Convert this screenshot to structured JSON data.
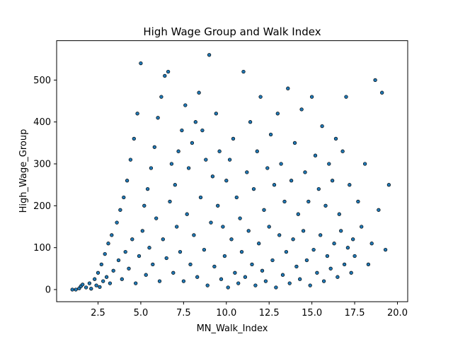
{
  "chart_data": {
    "type": "scatter",
    "title": "High Wage Group and Walk Index",
    "xlabel": "MN_Walk_Index",
    "ylabel": "High_Wage_Group",
    "xlim": [
      0.08,
      20.6
    ],
    "ylim": [
      -29,
      594
    ],
    "xticks": [
      {
        "value": 2.5,
        "label": "2.5"
      },
      {
        "value": 5.0,
        "label": "5.0"
      },
      {
        "value": 7.5,
        "label": "7.5"
      },
      {
        "value": 10.0,
        "label": "10.0"
      },
      {
        "value": 12.5,
        "label": "12.5"
      },
      {
        "value": 15.0,
        "label": "15.0"
      },
      {
        "value": 17.5,
        "label": "17.5"
      },
      {
        "value": 20.0,
        "label": "20.0"
      }
    ],
    "yticks": [
      {
        "value": 0,
        "label": "0"
      },
      {
        "value": 100,
        "label": "100"
      },
      {
        "value": 200,
        "label": "200"
      },
      {
        "value": 300,
        "label": "300"
      },
      {
        "value": 400,
        "label": "400"
      },
      {
        "value": 500,
        "label": "500"
      }
    ],
    "grid": false,
    "marker_color": "#1f77b4",
    "marker_edge": "#000000",
    "points": [
      [
        1.0,
        0
      ],
      [
        1.2,
        0
      ],
      [
        1.4,
        3
      ],
      [
        1.5,
        8
      ],
      [
        1.6,
        12
      ],
      [
        1.8,
        5
      ],
      [
        2.0,
        15
      ],
      [
        2.1,
        2
      ],
      [
        2.3,
        25
      ],
      [
        2.4,
        10
      ],
      [
        2.5,
        40
      ],
      [
        2.6,
        6
      ],
      [
        2.7,
        60
      ],
      [
        2.8,
        20
      ],
      [
        2.9,
        85
      ],
      [
        3.0,
        30
      ],
      [
        3.1,
        110
      ],
      [
        3.2,
        15
      ],
      [
        3.3,
        130
      ],
      [
        3.4,
        45
      ],
      [
        3.6,
        160
      ],
      [
        3.7,
        70
      ],
      [
        3.8,
        190
      ],
      [
        3.9,
        25
      ],
      [
        4.0,
        220
      ],
      [
        4.1,
        90
      ],
      [
        4.2,
        260
      ],
      [
        4.3,
        50
      ],
      [
        4.4,
        310
      ],
      [
        4.5,
        120
      ],
      [
        4.6,
        360
      ],
      [
        4.7,
        15
      ],
      [
        4.8,
        420
      ],
      [
        4.9,
        80
      ],
      [
        5.0,
        540
      ],
      [
        5.1,
        140
      ],
      [
        5.2,
        200
      ],
      [
        5.3,
        35
      ],
      [
        5.4,
        240
      ],
      [
        5.5,
        100
      ],
      [
        5.6,
        290
      ],
      [
        5.7,
        60
      ],
      [
        5.8,
        340
      ],
      [
        5.9,
        170
      ],
      [
        6.0,
        410
      ],
      [
        6.1,
        20
      ],
      [
        6.2,
        460
      ],
      [
        6.3,
        120
      ],
      [
        6.4,
        510
      ],
      [
        6.5,
        75
      ],
      [
        6.6,
        520
      ],
      [
        6.7,
        210
      ],
      [
        6.8,
        300
      ],
      [
        6.9,
        40
      ],
      [
        7.0,
        250
      ],
      [
        7.1,
        150
      ],
      [
        7.2,
        330
      ],
      [
        7.3,
        90
      ],
      [
        7.4,
        380
      ],
      [
        7.5,
        20
      ],
      [
        7.6,
        440
      ],
      [
        7.7,
        180
      ],
      [
        7.8,
        290
      ],
      [
        7.9,
        60
      ],
      [
        8.0,
        350
      ],
      [
        8.1,
        130
      ],
      [
        8.2,
        400
      ],
      [
        8.3,
        30
      ],
      [
        8.4,
        470
      ],
      [
        8.5,
        220
      ],
      [
        8.6,
        380
      ],
      [
        8.7,
        95
      ],
      [
        8.8,
        310
      ],
      [
        8.9,
        10
      ],
      [
        9.0,
        560
      ],
      [
        9.1,
        160
      ],
      [
        9.2,
        270
      ],
      [
        9.3,
        55
      ],
      [
        9.4,
        420
      ],
      [
        9.5,
        200
      ],
      [
        9.6,
        330
      ],
      [
        9.7,
        25
      ],
      [
        9.8,
        150
      ],
      [
        9.9,
        80
      ],
      [
        10.0,
        260
      ],
      [
        10.1,
        5
      ],
      [
        10.2,
        310
      ],
      [
        10.3,
        120
      ],
      [
        10.4,
        360
      ],
      [
        10.5,
        40
      ],
      [
        10.6,
        220
      ],
      [
        10.7,
        15
      ],
      [
        10.8,
        170
      ],
      [
        10.9,
        90
      ],
      [
        11.0,
        520
      ],
      [
        11.1,
        30
      ],
      [
        11.2,
        280
      ],
      [
        11.3,
        140
      ],
      [
        11.4,
        400
      ],
      [
        11.5,
        60
      ],
      [
        11.6,
        240
      ],
      [
        11.7,
        10
      ],
      [
        11.8,
        330
      ],
      [
        11.9,
        110
      ],
      [
        12.0,
        460
      ],
      [
        12.1,
        45
      ],
      [
        12.2,
        190
      ],
      [
        12.3,
        20
      ],
      [
        12.4,
        290
      ],
      [
        12.5,
        150
      ],
      [
        12.6,
        370
      ],
      [
        12.7,
        70
      ],
      [
        12.8,
        250
      ],
      [
        12.9,
        5
      ],
      [
        13.0,
        420
      ],
      [
        13.1,
        130
      ],
      [
        13.2,
        300
      ],
      [
        13.3,
        35
      ],
      [
        13.4,
        210
      ],
      [
        13.5,
        90
      ],
      [
        13.6,
        480
      ],
      [
        13.7,
        15
      ],
      [
        13.8,
        260
      ],
      [
        13.9,
        120
      ],
      [
        14.0,
        350
      ],
      [
        14.1,
        55
      ],
      [
        14.2,
        180
      ],
      [
        14.3,
        25
      ],
      [
        14.4,
        430
      ],
      [
        14.5,
        140
      ],
      [
        14.6,
        280
      ],
      [
        14.7,
        70
      ],
      [
        14.8,
        210
      ],
      [
        14.9,
        10
      ],
      [
        15.0,
        460
      ],
      [
        15.1,
        95
      ],
      [
        15.2,
        320
      ],
      [
        15.3,
        40
      ],
      [
        15.4,
        240
      ],
      [
        15.5,
        130
      ],
      [
        15.6,
        390
      ],
      [
        15.7,
        20
      ],
      [
        15.8,
        200
      ],
      [
        15.9,
        80
      ],
      [
        16.0,
        300
      ],
      [
        16.1,
        50
      ],
      [
        16.2,
        260
      ],
      [
        16.3,
        110
      ],
      [
        16.4,
        360
      ],
      [
        16.5,
        30
      ],
      [
        16.6,
        180
      ],
      [
        16.7,
        140
      ],
      [
        16.8,
        330
      ],
      [
        16.9,
        60
      ],
      [
        17.0,
        460
      ],
      [
        17.1,
        100
      ],
      [
        17.2,
        250
      ],
      [
        17.3,
        40
      ],
      [
        17.4,
        120
      ],
      [
        17.5,
        80
      ],
      [
        17.7,
        210
      ],
      [
        17.9,
        150
      ],
      [
        18.1,
        300
      ],
      [
        18.3,
        60
      ],
      [
        18.5,
        110
      ],
      [
        18.7,
        500
      ],
      [
        18.9,
        190
      ],
      [
        19.1,
        470
      ],
      [
        19.3,
        95
      ],
      [
        19.5,
        250
      ]
    ]
  }
}
